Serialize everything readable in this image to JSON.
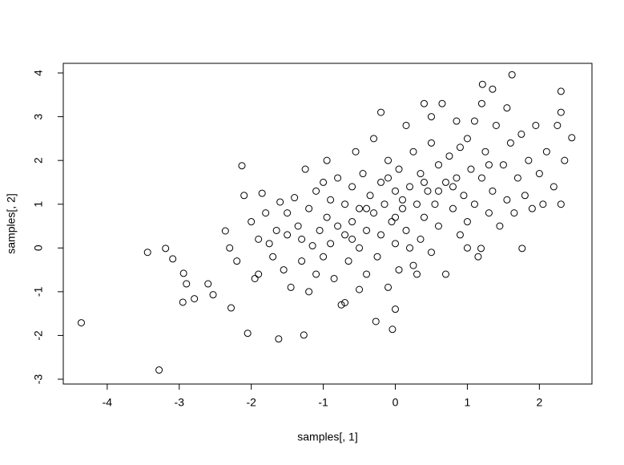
{
  "chart_data": {
    "type": "scatter",
    "x_label": "samples[, 1]",
    "y_label": "samples[, 2]",
    "color": "#000000",
    "xlim": [
      -4.61,
      2.73
    ],
    "ylim": [
      -3.11,
      4.22
    ],
    "xticks": [
      -4,
      -3,
      -2,
      -1,
      0,
      1,
      2
    ],
    "yticks": [
      -3,
      -2,
      -1,
      0,
      1,
      2,
      3,
      4
    ],
    "x": [
      -4.36,
      -3.28,
      -3.44,
      -3.19,
      -3.09,
      -2.94,
      -2.9,
      -2.95,
      -2.79,
      -2.6,
      -2.53,
      -2.13,
      -2.36,
      -2.28,
      -2.05,
      -1.62,
      -1.27,
      -0.04,
      -0.27,
      1.62,
      1.21,
      1.35,
      2.3,
      2.45,
      1.76,
      1.19,
      -2.0,
      -1.95,
      -1.9,
      -1.85,
      -1.8,
      -1.75,
      -1.7,
      -1.65,
      -1.6,
      -1.55,
      -1.5,
      -1.5,
      -1.45,
      -1.4,
      -1.35,
      -1.3,
      -1.3,
      -1.25,
      -1.2,
      -1.2,
      -1.15,
      -1.1,
      -1.1,
      -1.05,
      -1.0,
      -1.0,
      -0.95,
      -0.95,
      -0.9,
      -0.9,
      -0.85,
      -0.8,
      -0.8,
      -0.75,
      -0.7,
      -0.7,
      -0.65,
      -0.6,
      -0.6,
      -0.55,
      -0.5,
      -0.5,
      -0.45,
      -0.4,
      -0.4,
      -0.35,
      -0.3,
      -0.3,
      -0.25,
      -0.2,
      -0.2,
      -0.15,
      -0.1,
      -0.1,
      -0.05,
      0.0,
      0.0,
      0.05,
      0.05,
      0.1,
      0.15,
      0.15,
      0.2,
      0.25,
      0.25,
      0.3,
      0.35,
      0.35,
      0.4,
      0.4,
      0.45,
      0.5,
      0.5,
      0.55,
      0.6,
      0.6,
      0.65,
      0.7,
      0.7,
      0.75,
      0.8,
      0.85,
      0.85,
      0.9,
      0.95,
      1.0,
      1.0,
      1.05,
      1.1,
      1.1,
      1.15,
      1.2,
      1.25,
      1.3,
      1.35,
      1.4,
      1.45,
      1.5,
      1.55,
      1.55,
      1.6,
      1.65,
      1.7,
      1.75,
      1.8,
      1.85,
      1.9,
      1.95,
      2.0,
      2.05,
      2.1,
      2.2,
      2.25,
      2.3,
      2.3,
      2.35,
      -2.1,
      -2.2,
      -2.3,
      -1.9,
      0.0,
      -0.5,
      0.3,
      -0.7,
      1.0,
      0.5,
      -0.2,
      0.9,
      1.2,
      0.2,
      -0.1,
      0.6,
      0.1,
      -0.4,
      0.4,
      0.8,
      -0.6,
      1.3,
      0.0
    ],
    "values": [
      -1.71,
      -2.79,
      -0.1,
      -0.01,
      -0.25,
      -0.58,
      -0.82,
      -1.24,
      -1.16,
      -0.82,
      -1.07,
      1.88,
      0.39,
      -1.37,
      -1.95,
      -2.08,
      -1.99,
      -1.86,
      -1.68,
      3.96,
      3.74,
      3.63,
      3.58,
      2.52,
      -0.01,
      -0.01,
      0.6,
      -0.7,
      -0.6,
      1.25,
      0.8,
      0.1,
      -0.2,
      0.4,
      1.05,
      -0.5,
      0.3,
      0.8,
      -0.9,
      1.15,
      0.5,
      -0.3,
      0.2,
      1.8,
      0.9,
      -1.0,
      0.05,
      1.3,
      -0.6,
      0.4,
      1.5,
      -0.2,
      0.7,
      2.0,
      0.1,
      1.1,
      -0.7,
      0.5,
      1.6,
      -1.3,
      0.3,
      1.0,
      -0.3,
      1.4,
      0.6,
      2.2,
      0.0,
      0.9,
      1.7,
      -0.6,
      0.4,
      1.2,
      2.5,
      0.8,
      -0.2,
      1.5,
      0.3,
      1.0,
      2.0,
      -0.9,
      0.6,
      1.3,
      0.1,
      1.8,
      -0.5,
      0.9,
      2.8,
      0.4,
      1.4,
      -0.4,
      2.2,
      1.0,
      0.2,
      1.7,
      3.3,
      0.7,
      1.3,
      2.4,
      -0.1,
      1.0,
      1.9,
      0.5,
      3.3,
      1.5,
      -0.6,
      2.1,
      0.9,
      1.6,
      2.9,
      0.3,
      1.2,
      2.5,
      0.6,
      1.8,
      2.9,
      1.0,
      -0.2,
      1.6,
      2.2,
      0.8,
      1.3,
      2.8,
      0.5,
      1.9,
      3.2,
      1.1,
      2.4,
      0.8,
      1.6,
      2.6,
      1.2,
      2.0,
      0.9,
      2.8,
      1.7,
      1.0,
      2.2,
      1.4,
      2.8,
      1.0,
      3.1,
      2.0,
      1.2,
      -0.3,
      0.0,
      0.2,
      -1.4,
      -0.95,
      -0.6,
      -1.25,
      0.0,
      3.0,
      3.1,
      2.3,
      3.3,
      0.0,
      1.6,
      1.3,
      1.1,
      0.9,
      1.5,
      1.4,
      0.2,
      1.9,
      0.7
    ]
  }
}
